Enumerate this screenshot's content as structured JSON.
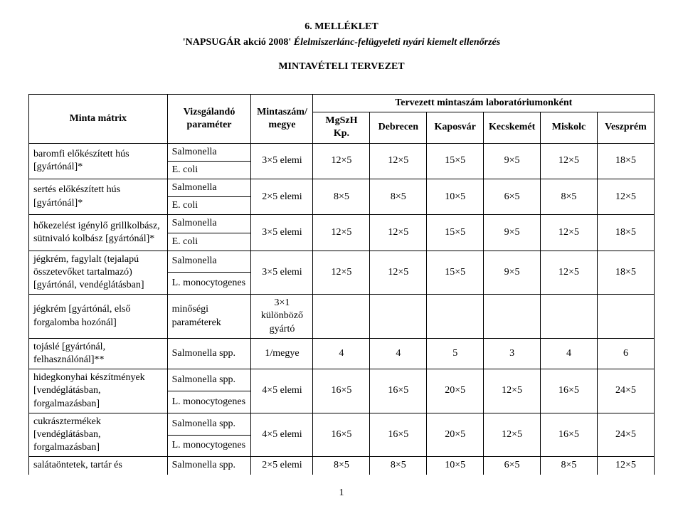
{
  "header": {
    "line1": "6. MELLÉKLET",
    "line2_quote1": "'NAPSUGÁR akció 2008'",
    "line2_italic": "Élelmiszerlánc-felügyeleti nyári kiemelt ellenőrzés",
    "subtitle": "MINTAVÉTELI TERVEZET"
  },
  "table": {
    "head": {
      "matrix": "Minta mátrix",
      "param": "Vizsgálandó paraméter",
      "megye": "Mintaszám/ megye",
      "lab_group": "Tervezett mintaszám laboratóriumonként",
      "labs": [
        "MgSzH Kp.",
        "Debrecen",
        "Kaposvár",
        "Kecskemét",
        "Miskolc",
        "Veszprém"
      ]
    },
    "rows": [
      {
        "matrix": "baromfi előkészített hús [gyártónál]*",
        "params": [
          "Salmonella",
          "E. coli"
        ],
        "megye": "3×5 elemi",
        "vals": [
          "12×5",
          "12×5",
          "15×5",
          "9×5",
          "12×5",
          "18×5"
        ]
      },
      {
        "matrix": "sertés előkészített hús [gyártónál]*",
        "params": [
          "Salmonella",
          "E. coli"
        ],
        "megye": "2×5 elemi",
        "vals": [
          "8×5",
          "8×5",
          "10×5",
          "6×5",
          "8×5",
          "12×5"
        ]
      },
      {
        "matrix": "hőkezelést igénylő grillkolbász, sütnivaló kolbász [gyártónál]*",
        "params": [
          "Salmonella",
          "E. coli"
        ],
        "megye": "3×5 elemi",
        "vals": [
          "12×5",
          "12×5",
          "15×5",
          "9×5",
          "12×5",
          "18×5"
        ]
      },
      {
        "matrix": "jégkrém, fagylalt (tejalapú összetevőket tartalmazó) [gyártónál, vendéglátásban]",
        "params": [
          "Salmonella",
          "L. monocytogenes"
        ],
        "megye": "3×5 elemi",
        "vals": [
          "12×5",
          "12×5",
          "15×5",
          "9×5",
          "12×5",
          "18×5"
        ]
      },
      {
        "matrix": "jégkrém [gyártónál, első forgalomba hozónál]",
        "params": [
          "minőségi paraméterek"
        ],
        "param_span": 2,
        "megye": "3×1 különböző gyártó",
        "vals": [
          "",
          "",
          "",
          "",
          "",
          ""
        ]
      },
      {
        "matrix": "tojáslé [gyártónál, felhasználónál]**",
        "params": [
          "Salmonella spp."
        ],
        "param_span": 2,
        "megye": "1/megye",
        "vals": [
          "4",
          "4",
          "5",
          "3",
          "4",
          "6"
        ]
      },
      {
        "matrix": "hidegkonyhai készítmények [vendéglátásban, forgalmazásban]",
        "params": [
          "Salmonella spp.",
          "L. monocytogenes"
        ],
        "megye": "4×5 elemi",
        "vals": [
          "16×5",
          "16×5",
          "20×5",
          "12×5",
          "16×5",
          "24×5"
        ]
      },
      {
        "matrix": "cukrásztermékek [vendéglátásban, forgalmazásban]",
        "params": [
          "Salmonella spp.",
          "L. monocytogenes"
        ],
        "megye": "4×5 elemi",
        "vals": [
          "16×5",
          "16×5",
          "20×5",
          "12×5",
          "16×5",
          "24×5"
        ]
      },
      {
        "matrix": "salátaöntetek, tartár és",
        "params": [
          "Salmonella spp."
        ],
        "param_span": 1,
        "no_bottom": true,
        "megye": "2×5 elemi",
        "vals": [
          "8×5",
          "8×5",
          "10×5",
          "6×5",
          "8×5",
          "12×5"
        ]
      }
    ]
  },
  "page_number": "1"
}
